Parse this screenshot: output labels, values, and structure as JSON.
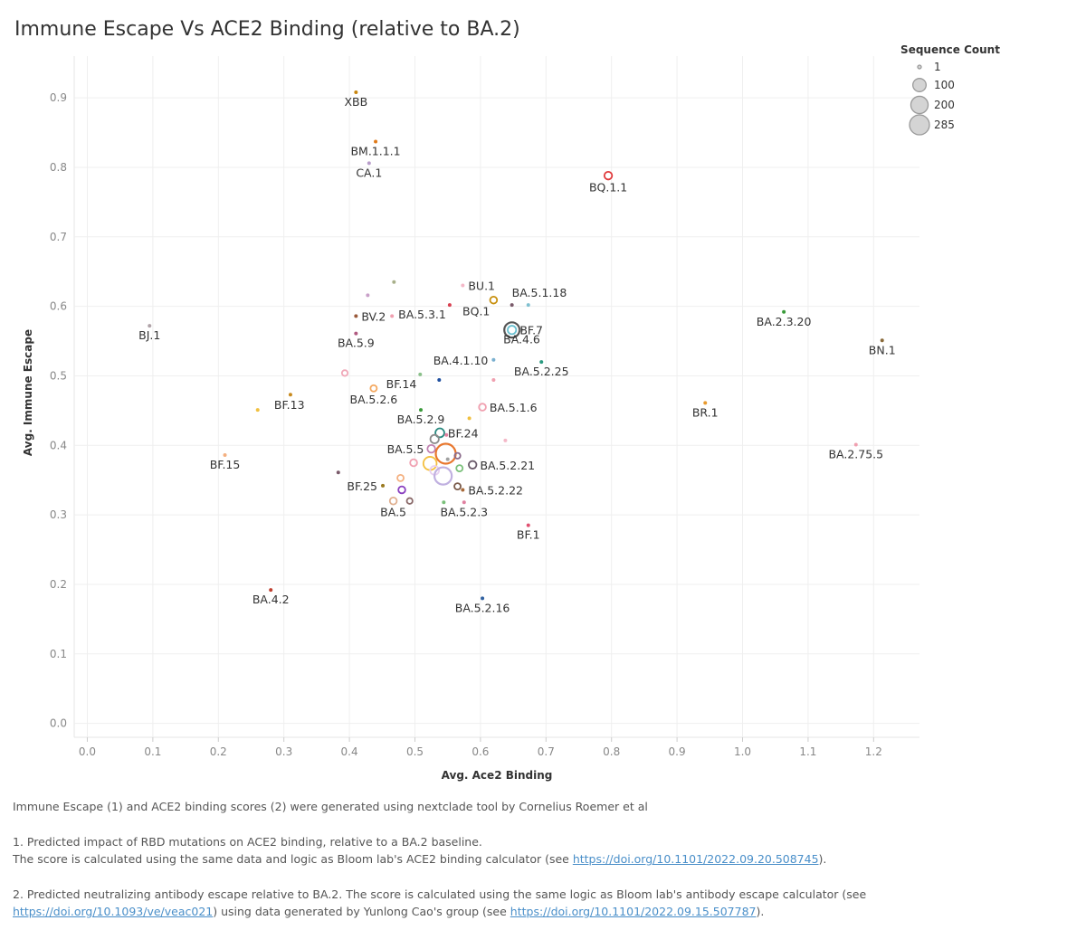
{
  "chart_data": {
    "type": "scatter",
    "title": "Immune Escape Vs ACE2 Binding (relative to BA.2)",
    "xlabel": "Avg. Ace2 Binding",
    "ylabel": "Avg. Immune Escape",
    "xlim": [
      -0.02,
      1.27
    ],
    "ylim": [
      -0.02,
      0.96
    ],
    "xticks": [
      0.0,
      0.1,
      0.2,
      0.3,
      0.4,
      0.5,
      0.6,
      0.7,
      0.8,
      0.9,
      1.0,
      1.1,
      1.2
    ],
    "yticks": [
      0.0,
      0.1,
      0.2,
      0.3,
      0.4,
      0.5,
      0.6,
      0.7,
      0.8,
      0.9
    ],
    "grid": true,
    "legend": {
      "title": "Sequence Count",
      "position": "top-right",
      "entries": [
        {
          "label": "1",
          "count": 1
        },
        {
          "label": "100",
          "count": 100
        },
        {
          "label": "200",
          "count": 200
        },
        {
          "label": "285",
          "count": 285
        }
      ]
    },
    "points": [
      {
        "x": 0.41,
        "y": 0.908,
        "count": 1,
        "color": "#c8860e",
        "label": "XBB",
        "lpos": "below"
      },
      {
        "x": 0.44,
        "y": 0.837,
        "count": 1,
        "color": "#e07b1a",
        "label": "BM.1.1.1",
        "lpos": "below"
      },
      {
        "x": 0.43,
        "y": 0.806,
        "count": 1,
        "color": "#b79cc9",
        "label": "CA.1",
        "lpos": "below"
      },
      {
        "x": 0.795,
        "y": 0.788,
        "count": 18,
        "color": "#e0393b",
        "label": "BQ.1.1",
        "lpos": "below"
      },
      {
        "x": 0.095,
        "y": 0.572,
        "count": 1,
        "color": "#b0a3a8",
        "label": "BJ.1",
        "lpos": "below"
      },
      {
        "x": 1.063,
        "y": 0.592,
        "count": 1,
        "color": "#3a9a3a",
        "label": "BA.2.3.20",
        "lpos": "below"
      },
      {
        "x": 1.213,
        "y": 0.551,
        "count": 1,
        "color": "#8a6a3a",
        "label": "BN.1",
        "lpos": "below"
      },
      {
        "x": 0.943,
        "y": 0.461,
        "count": 1,
        "color": "#e89a2e",
        "label": "BR.1",
        "lpos": "below"
      },
      {
        "x": 1.173,
        "y": 0.401,
        "count": 1,
        "color": "#f0a0b0",
        "label": "BA.2.75.5",
        "lpos": "below"
      },
      {
        "x": 0.41,
        "y": 0.586,
        "count": 1,
        "color": "#9a5a3a",
        "label": "BV.2",
        "lpos": "right"
      },
      {
        "x": 0.41,
        "y": 0.561,
        "count": 1,
        "color": "#b05a80",
        "label": "BA.5.9",
        "lpos": "below"
      },
      {
        "x": 0.428,
        "y": 0.616,
        "count": 1,
        "color": "#c9a0c9",
        "label": "",
        "lpos": "none"
      },
      {
        "x": 0.468,
        "y": 0.635,
        "count": 1,
        "color": "#a8b08a",
        "label": "",
        "lpos": "none"
      },
      {
        "x": 0.465,
        "y": 0.586,
        "count": 1,
        "color": "#f0a0b0",
        "label": "",
        "lpos": "none"
      },
      {
        "x": 0.573,
        "y": 0.63,
        "count": 1,
        "color": "#f4b8c8",
        "label": "BU.1",
        "lpos": "right"
      },
      {
        "x": 0.553,
        "y": 0.602,
        "count": 1,
        "color": "#d84050",
        "label": "BA.5.3.1",
        "lpos": "below-left"
      },
      {
        "x": 0.62,
        "y": 0.609,
        "count": 12,
        "color": "#c8900e",
        "label": "BQ.1",
        "lpos": "below-left"
      },
      {
        "x": 0.648,
        "y": 0.602,
        "count": 1,
        "color": "#7a5a6a",
        "label": "BA.5.1.18",
        "lpos": "above-right"
      },
      {
        "x": 0.673,
        "y": 0.602,
        "count": 1,
        "color": "#80c0d0",
        "label": "",
        "lpos": "none"
      },
      {
        "x": 0.648,
        "y": 0.566,
        "count": 145,
        "color": "#555555",
        "label": "",
        "lpos": "none"
      },
      {
        "x": 0.648,
        "y": 0.566,
        "count": 25,
        "color": "#6ac0d0",
        "label": "BF.7",
        "lpos": "right"
      },
      {
        "x": 0.663,
        "y": 0.566,
        "count": 1,
        "color": "#b0b0b0",
        "label": "BA.4.6",
        "lpos": "below"
      },
      {
        "x": 0.62,
        "y": 0.523,
        "count": 1,
        "color": "#7ab0d0",
        "label": "BA.4.1.10",
        "lpos": "left"
      },
      {
        "x": 0.693,
        "y": 0.52,
        "count": 1,
        "color": "#2a9a80",
        "label": "BA.5.2.25",
        "lpos": "below"
      },
      {
        "x": 0.62,
        "y": 0.494,
        "count": 1,
        "color": "#f0a0b0",
        "label": "",
        "lpos": "none"
      },
      {
        "x": 0.537,
        "y": 0.494,
        "count": 1,
        "color": "#2050a0",
        "label": "",
        "lpos": "none"
      },
      {
        "x": 0.508,
        "y": 0.502,
        "count": 1,
        "color": "#8ac08a",
        "label": "BF.14",
        "lpos": "below-left"
      },
      {
        "x": 0.393,
        "y": 0.504,
        "count": 5,
        "color": "#f0a8b8",
        "label": "",
        "lpos": "none"
      },
      {
        "x": 0.437,
        "y": 0.482,
        "count": 8,
        "color": "#f4a860",
        "label": "BA.5.2.6",
        "lpos": "below"
      },
      {
        "x": 0.31,
        "y": 0.473,
        "count": 1,
        "color": "#c88a1e",
        "label": "BF.13",
        "lpos": "below-right"
      },
      {
        "x": 0.26,
        "y": 0.451,
        "count": 1,
        "color": "#f0c040",
        "label": "",
        "lpos": "none"
      },
      {
        "x": 0.509,
        "y": 0.451,
        "count": 1,
        "color": "#3a9a3a",
        "label": "BA.5.2.9",
        "lpos": "below"
      },
      {
        "x": 0.603,
        "y": 0.455,
        "count": 12,
        "color": "#f0a0b0",
        "label": "BA.5.1.6",
        "lpos": "right"
      },
      {
        "x": 0.583,
        "y": 0.439,
        "count": 1,
        "color": "#f0c040",
        "label": "",
        "lpos": "none"
      },
      {
        "x": 0.538,
        "y": 0.418,
        "count": 30,
        "color": "#2a8a80",
        "label": "BF.24",
        "lpos": "right"
      },
      {
        "x": 0.548,
        "y": 0.415,
        "count": 1,
        "color": "#e080a0",
        "label": "",
        "lpos": "none"
      },
      {
        "x": 0.53,
        "y": 0.409,
        "count": 25,
        "color": "#8a8a8a",
        "label": "",
        "lpos": "none"
      },
      {
        "x": 0.638,
        "y": 0.407,
        "count": 1,
        "color": "#f4b8c8",
        "label": "",
        "lpos": "none"
      },
      {
        "x": 0.21,
        "y": 0.386,
        "count": 1,
        "color": "#f4b080",
        "label": "BF.15",
        "lpos": "below"
      },
      {
        "x": 0.525,
        "y": 0.395,
        "count": 18,
        "color": "#c080b0",
        "label": "BA.5.5",
        "lpos": "left"
      },
      {
        "x": 0.547,
        "y": 0.388,
        "count": 285,
        "color": "#e8772e",
        "label": "",
        "lpos": "none"
      },
      {
        "x": 0.498,
        "y": 0.375,
        "count": 12,
        "color": "#f0a0b0",
        "label": "",
        "lpos": "none"
      },
      {
        "x": 0.523,
        "y": 0.374,
        "count": 100,
        "color": "#f4c040",
        "label": "",
        "lpos": "none"
      },
      {
        "x": 0.55,
        "y": 0.38,
        "count": 1,
        "color": "#a0a0a0",
        "label": "",
        "lpos": "none"
      },
      {
        "x": 0.565,
        "y": 0.385,
        "count": 5,
        "color": "#8a6a8a",
        "label": "",
        "lpos": "none"
      },
      {
        "x": 0.53,
        "y": 0.364,
        "count": 30,
        "color": "#e8d0f0",
        "label": "",
        "lpos": "none"
      },
      {
        "x": 0.543,
        "y": 0.356,
        "count": 200,
        "color": "#c0b0e0",
        "label": "",
        "lpos": "none"
      },
      {
        "x": 0.568,
        "y": 0.367,
        "count": 8,
        "color": "#7ac07a",
        "label": "",
        "lpos": "none"
      },
      {
        "x": 0.588,
        "y": 0.372,
        "count": 18,
        "color": "#6a5a6a",
        "label": "BA.5.2.21",
        "lpos": "right"
      },
      {
        "x": 0.383,
        "y": 0.361,
        "count": 1,
        "color": "#7a5a6a",
        "label": "",
        "lpos": "none"
      },
      {
        "x": 0.478,
        "y": 0.353,
        "count": 8,
        "color": "#f4b080",
        "label": "",
        "lpos": "none"
      },
      {
        "x": 0.451,
        "y": 0.342,
        "count": 1,
        "color": "#9a7a20",
        "label": "BF.25",
        "lpos": "left"
      },
      {
        "x": 0.48,
        "y": 0.336,
        "count": 12,
        "color": "#8a40c0",
        "label": "",
        "lpos": "none"
      },
      {
        "x": 0.565,
        "y": 0.341,
        "count": 8,
        "color": "#7a5a4a",
        "label": "",
        "lpos": "none"
      },
      {
        "x": 0.573,
        "y": 0.336,
        "count": 1,
        "color": "#a86a3a",
        "label": "BA.5.2.22",
        "lpos": "right"
      },
      {
        "x": 0.467,
        "y": 0.32,
        "count": 12,
        "color": "#e0b090",
        "label": "BA.5",
        "lpos": "below"
      },
      {
        "x": 0.492,
        "y": 0.32,
        "count": 5,
        "color": "#8a6a6a",
        "label": "",
        "lpos": "none"
      },
      {
        "x": 0.544,
        "y": 0.318,
        "count": 1,
        "color": "#7ac07a",
        "label": "",
        "lpos": "none"
      },
      {
        "x": 0.575,
        "y": 0.318,
        "count": 1,
        "color": "#e080a0",
        "label": "BA.5.2.3",
        "lpos": "below"
      },
      {
        "x": 0.673,
        "y": 0.285,
        "count": 1,
        "color": "#e05070",
        "label": "BF.1",
        "lpos": "below"
      },
      {
        "x": 0.28,
        "y": 0.192,
        "count": 1,
        "color": "#c04030",
        "label": "BA.4.2",
        "lpos": "below"
      },
      {
        "x": 0.603,
        "y": 0.18,
        "count": 1,
        "color": "#3060a0",
        "label": "BA.5.2.16",
        "lpos": "below"
      }
    ]
  },
  "notes": {
    "intro": "Immune Escape (1) and ACE2 binding scores (2) were generated using nextclade tool by Cornelius Roemer et al",
    "n1_line1": "1. Predicted impact of RBD mutations on ACE2 binding, relative to a BA.2 baseline.",
    "n1_line2_pre": "The score is calculated using the same data and logic as Bloom lab's ACE2 binding calculator (see ",
    "n1_link": "https://doi.org/10.1101/2022.09.20.508745",
    "n1_line2_post": ").",
    "n2_pre": "2. Predicted neutralizing antibody escape relative to BA.2. The score is calculated using the same logic as Bloom lab's antibody escape calculator (see ",
    "n2_link1": "https://doi.org/10.1093/ve/veac021",
    "n2_mid": ") using data generated by Yunlong Cao's group (see ",
    "n2_link2": "https://doi.org/10.1101/2022.09.15.507787",
    "n2_post": ")."
  }
}
